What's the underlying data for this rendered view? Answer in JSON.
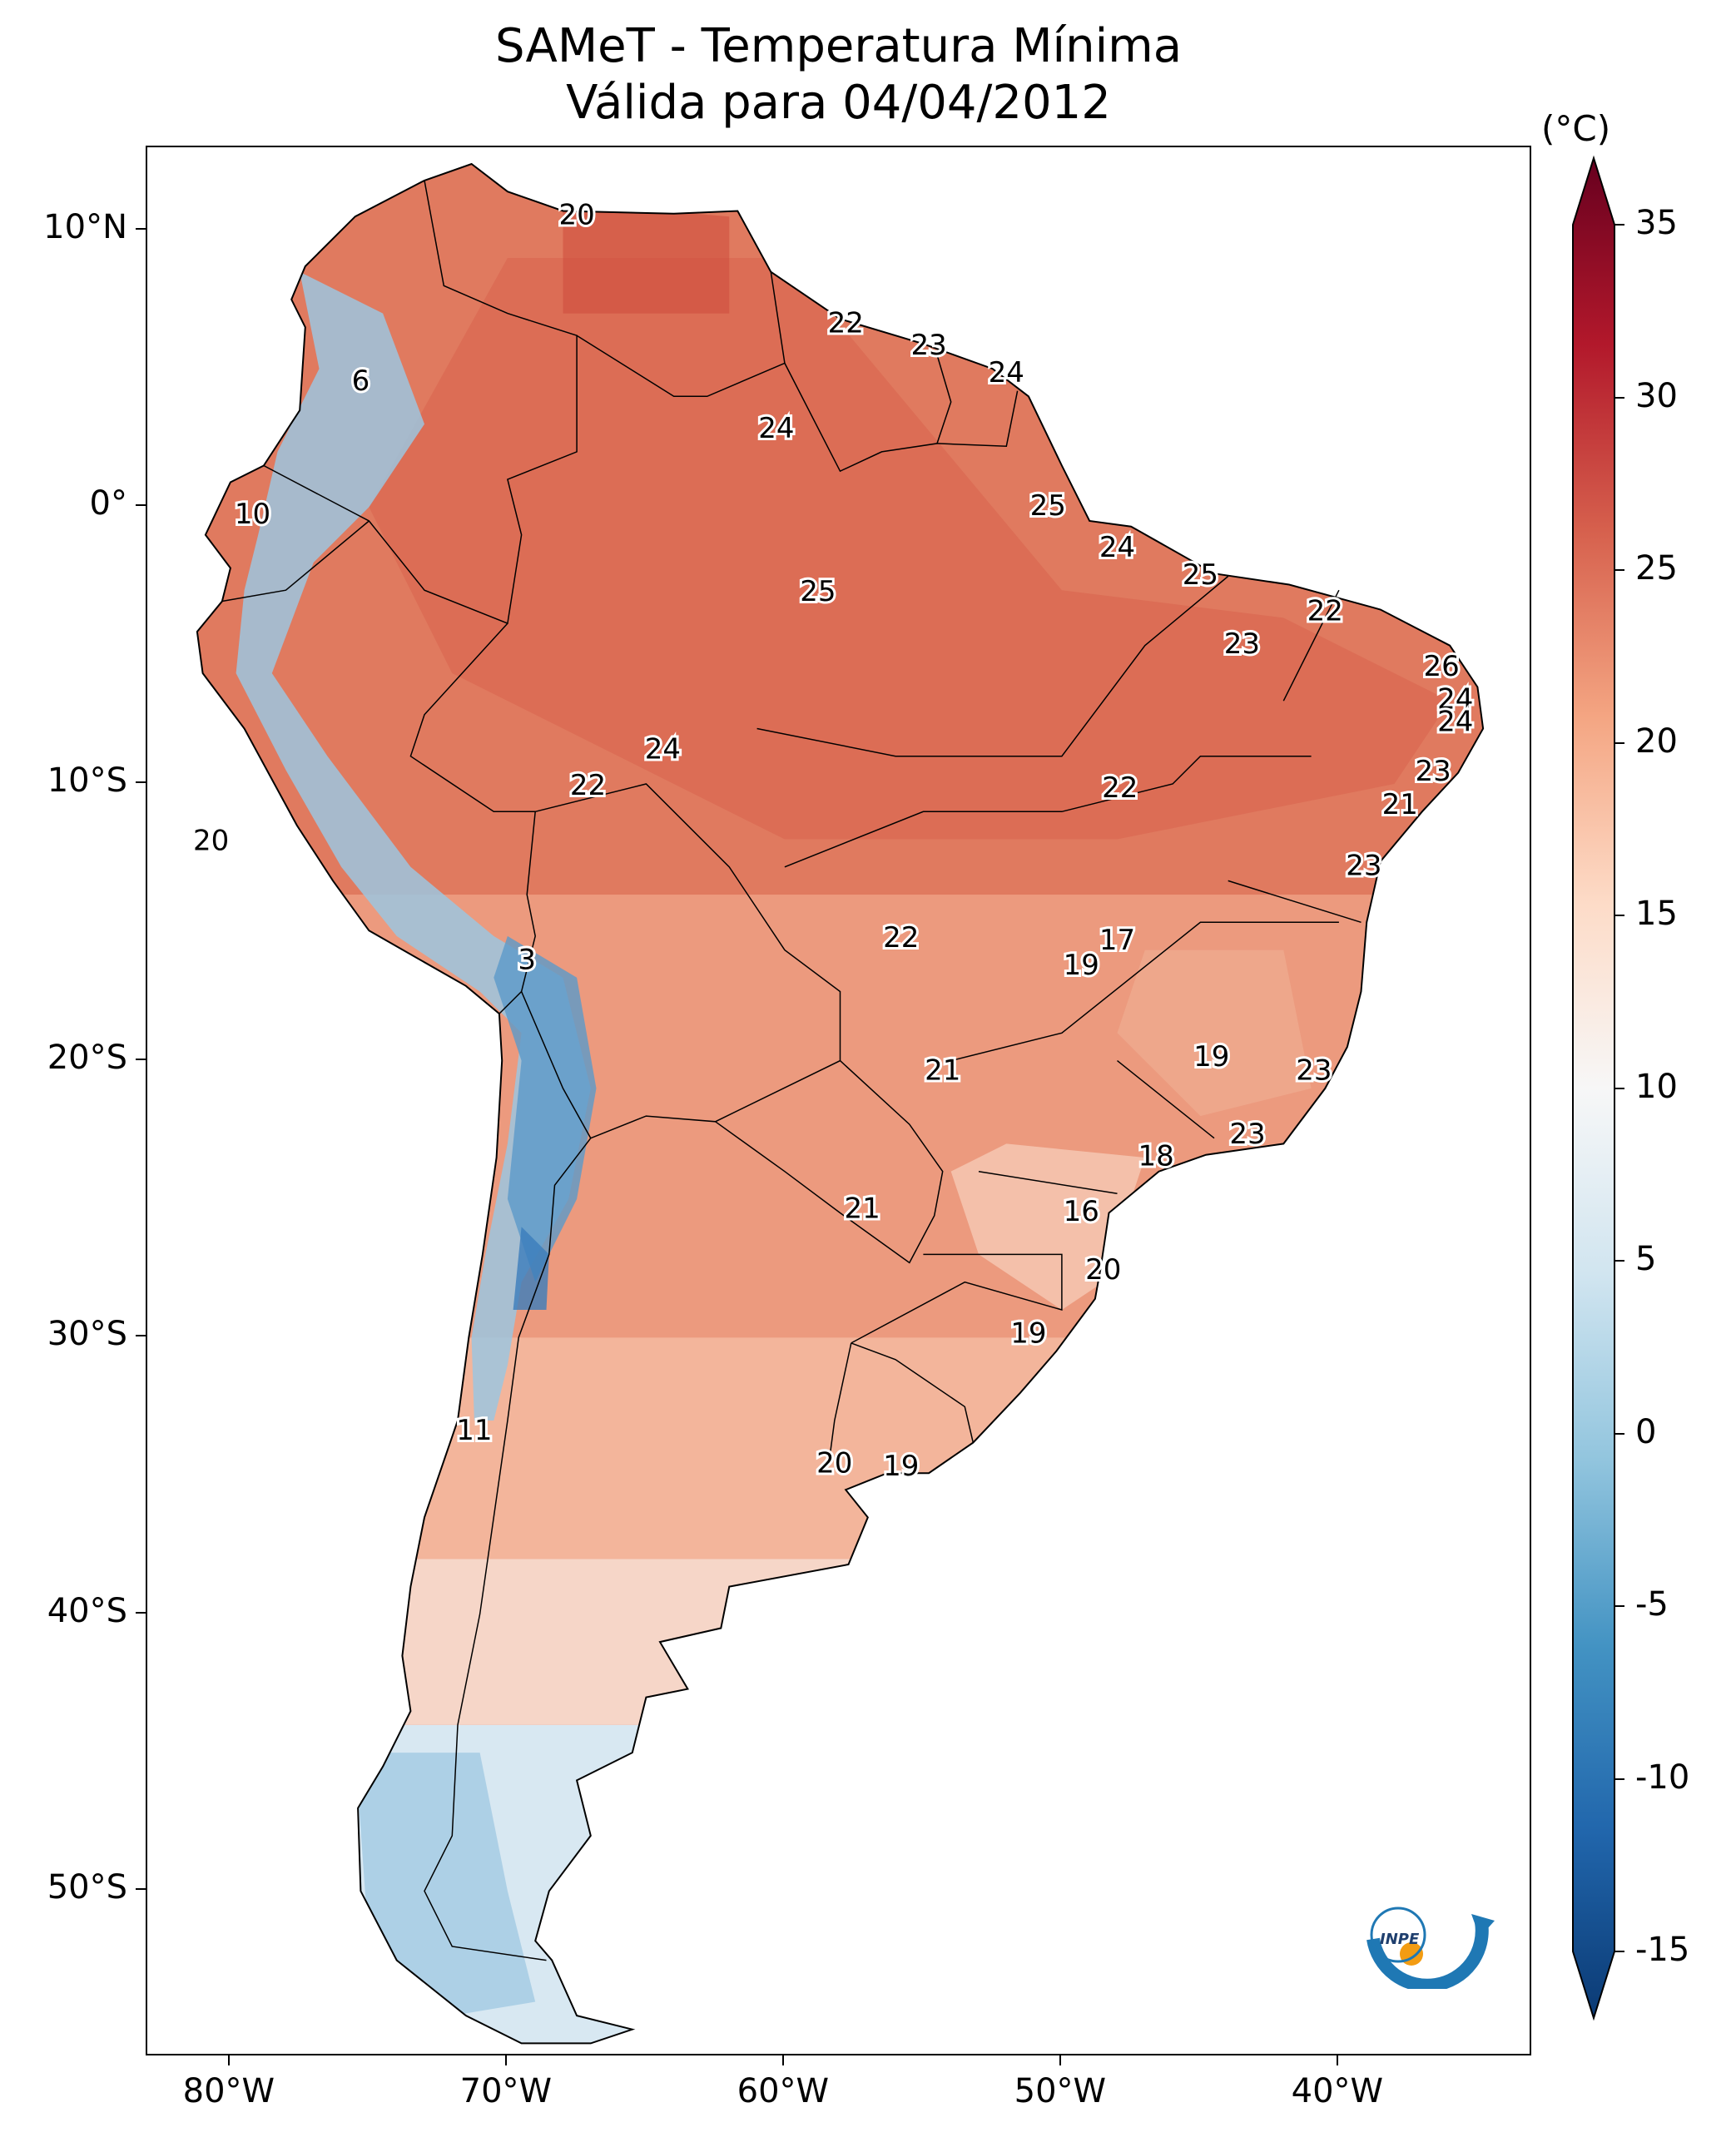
{
  "title_line1": "SAMeT - Temperatura Mínima",
  "title_line2": "Válida para 04/04/2012",
  "colorbar": {
    "unit": "(°C)",
    "ticks": [
      "35",
      "30",
      "25",
      "20",
      "15",
      "10",
      "5",
      "0",
      "-5",
      "-10",
      "-15"
    ],
    "min": -15,
    "max": 35,
    "colors": [
      "#0b3a74",
      "#2166ac",
      "#4393c3",
      "#92c5de",
      "#d1e5f0",
      "#f7f7f7",
      "#fddbc7",
      "#f4a582",
      "#d6604d",
      "#b2182b",
      "#67001f"
    ]
  },
  "axes": {
    "lon_labels": [
      "80°W",
      "70°W",
      "60°W",
      "50°W",
      "40°W"
    ],
    "lat_labels": [
      "10°N",
      "0°",
      "10°S",
      "20°S",
      "30°S",
      "40°S",
      "50°S"
    ]
  },
  "stations": [
    {
      "v": "20",
      "lon": -67.5,
      "lat": 10.5
    },
    {
      "v": "22",
      "lon": -57.8,
      "lat": 6.6
    },
    {
      "v": "23",
      "lon": -54.8,
      "lat": 5.8
    },
    {
      "v": "24",
      "lon": -52.0,
      "lat": 4.8
    },
    {
      "v": "6",
      "lon": -75.3,
      "lat": 4.5
    },
    {
      "v": "24",
      "lon": -60.3,
      "lat": 2.8
    },
    {
      "v": "25",
      "lon": -50.5,
      "lat": 0.0
    },
    {
      "v": "10",
      "lon": -79.2,
      "lat": -0.3
    },
    {
      "v": "24",
      "lon": -48.0,
      "lat": -1.5
    },
    {
      "v": "25",
      "lon": -45.0,
      "lat": -2.5
    },
    {
      "v": "25",
      "lon": -58.8,
      "lat": -3.1
    },
    {
      "v": "22",
      "lon": -40.5,
      "lat": -3.8
    },
    {
      "v": "23",
      "lon": -43.5,
      "lat": -5.0
    },
    {
      "v": "26",
      "lon": -36.3,
      "lat": -5.8
    },
    {
      "v": "24",
      "lon": -35.8,
      "lat": -7.0
    },
    {
      "v": "24",
      "lon": -35.8,
      "lat": -7.8
    },
    {
      "v": "24",
      "lon": -64.4,
      "lat": -8.8
    },
    {
      "v": "23",
      "lon": -36.6,
      "lat": -9.6
    },
    {
      "v": "22",
      "lon": -67.1,
      "lat": -10.1
    },
    {
      "v": "22",
      "lon": -47.9,
      "lat": -10.2
    },
    {
      "v": "21",
      "lon": -37.8,
      "lat": -10.8
    },
    {
      "v": "20",
      "lon": -80.7,
      "lat": -12.1
    },
    {
      "v": "23",
      "lon": -39.1,
      "lat": -13.0
    },
    {
      "v": "22",
      "lon": -55.8,
      "lat": -15.6
    },
    {
      "v": "17",
      "lon": -48.0,
      "lat": -15.7
    },
    {
      "v": "19",
      "lon": -49.3,
      "lat": -16.6
    },
    {
      "v": "3",
      "lon": -69.3,
      "lat": -16.4
    },
    {
      "v": "19",
      "lon": -44.6,
      "lat": -19.9
    },
    {
      "v": "21",
      "lon": -54.3,
      "lat": -20.4
    },
    {
      "v": "23",
      "lon": -40.9,
      "lat": -20.4
    },
    {
      "v": "23",
      "lon": -43.3,
      "lat": -22.7
    },
    {
      "v": "18",
      "lon": -46.6,
      "lat": -23.5
    },
    {
      "v": "21",
      "lon": -57.2,
      "lat": -25.4
    },
    {
      "v": "16",
      "lon": -49.3,
      "lat": -25.5
    },
    {
      "v": "20",
      "lon": -48.5,
      "lat": -27.6
    },
    {
      "v": "19",
      "lon": -51.2,
      "lat": -29.9
    },
    {
      "v": "11",
      "lon": -71.2,
      "lat": -33.4
    },
    {
      "v": "20",
      "lon": -58.2,
      "lat": -34.6
    },
    {
      "v": "19",
      "lon": -55.8,
      "lat": -34.7
    }
  ],
  "logo_text": "INPE"
}
